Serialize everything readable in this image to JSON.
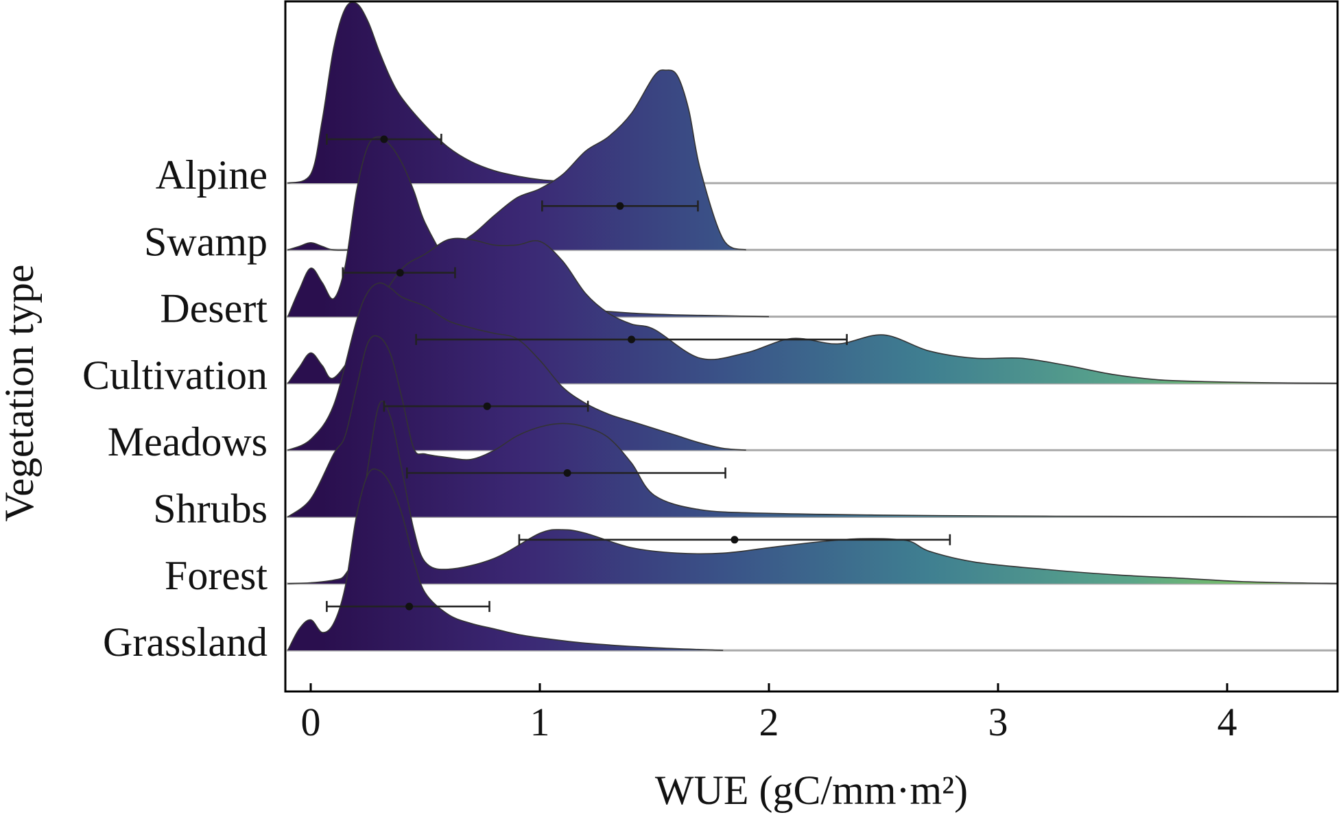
{
  "chart_data": {
    "type": "ridgeline",
    "xlabel": "WUE (gC/mm·m²)",
    "ylabel": "Vegetation type",
    "xlim": [
      -0.1,
      4.5
    ],
    "x_ticks": [
      0,
      1,
      2,
      3,
      4
    ],
    "grid": false,
    "legend": "none",
    "colormap": "viridis gradient along x (dark purple at low WUE to yellow-green at high WUE)",
    "colors": {
      "gradient_stops": [
        "#2a0f4e",
        "#3b2874",
        "#3a5388",
        "#3f7f91",
        "#5aa58a",
        "#8fd44c"
      ],
      "outline": "#333333",
      "baseline": "#a8a8a8",
      "errorbar": "#222222"
    },
    "categories": [
      "Alpine",
      "Swamp",
      "Desert",
      "Cultivation",
      "Meadows",
      "Shrubs",
      "Forest",
      "Grassland"
    ],
    "series": [
      {
        "name": "Alpine",
        "density_x": [
          -0.1,
          0,
          0.05,
          0.1,
          0.15,
          0.2,
          0.25,
          0.3,
          0.35,
          0.4,
          0.5,
          0.6,
          0.7,
          0.8,
          0.9,
          1.0,
          1.1,
          1.2,
          1.3
        ],
        "density_y": [
          0,
          0.05,
          0.35,
          0.75,
          0.97,
          1.0,
          0.9,
          0.73,
          0.58,
          0.47,
          0.32,
          0.2,
          0.12,
          0.07,
          0.04,
          0.02,
          0.01,
          0.005,
          0
        ],
        "mean": 0.32,
        "lower": 0.07,
        "upper": 0.57
      },
      {
        "name": "Swamp",
        "density_x": [
          -0.1,
          -0.05,
          0,
          0.05,
          0.1,
          0.2,
          0.4,
          0.6,
          0.7,
          0.8,
          0.9,
          1.0,
          1.1,
          1.2,
          1.3,
          1.4,
          1.5,
          1.55,
          1.6,
          1.65,
          1.7,
          1.8,
          1.9
        ],
        "density_y": [
          0,
          0.02,
          0.04,
          0.02,
          0,
          0,
          0,
          0.02,
          0.08,
          0.19,
          0.29,
          0.34,
          0.42,
          0.55,
          0.63,
          0.76,
          0.97,
          1.0,
          0.97,
          0.78,
          0.45,
          0.06,
          0
        ],
        "mean": 1.35,
        "lower": 1.01,
        "upper": 1.69
      },
      {
        "name": "Desert",
        "density_x": [
          -0.1,
          -0.05,
          0,
          0.05,
          0.1,
          0.15,
          0.2,
          0.25,
          0.3,
          0.35,
          0.4,
          0.45,
          0.5,
          0.6,
          0.7,
          0.8,
          0.9,
          1.0,
          1.2,
          1.4,
          1.6,
          1.8,
          2.0
        ],
        "density_y": [
          0,
          0.15,
          0.27,
          0.19,
          0.1,
          0.28,
          0.7,
          0.95,
          1.0,
          0.95,
          0.85,
          0.7,
          0.52,
          0.3,
          0.2,
          0.14,
          0.1,
          0.07,
          0.04,
          0.02,
          0.01,
          0.005,
          0
        ],
        "mean": 0.39,
        "lower": 0.14,
        "upper": 0.63
      },
      {
        "name": "Cultivation",
        "density_x": [
          -0.1,
          -0.05,
          0,
          0.05,
          0.1,
          0.2,
          0.3,
          0.4,
          0.5,
          0.6,
          0.7,
          0.8,
          0.9,
          1.0,
          1.1,
          1.2,
          1.3,
          1.4,
          1.5,
          1.7,
          1.9,
          2.1,
          2.3,
          2.5,
          2.7,
          2.9,
          3.1,
          3.3,
          3.5,
          3.7,
          3.9,
          4.1,
          4.3,
          4.5
        ],
        "density_y": [
          0,
          0.09,
          0.17,
          0.1,
          0.03,
          0.2,
          0.45,
          0.64,
          0.72,
          0.8,
          0.8,
          0.77,
          0.77,
          0.79,
          0.68,
          0.5,
          0.39,
          0.33,
          0.3,
          0.14,
          0.17,
          0.25,
          0.22,
          0.27,
          0.18,
          0.14,
          0.14,
          0.1,
          0.05,
          0.02,
          0.01,
          0.005,
          0.002,
          0
        ],
        "mean": 1.4,
        "lower": 0.46,
        "upper": 2.34
      },
      {
        "name": "Meadows",
        "density_x": [
          -0.1,
          0,
          0.1,
          0.2,
          0.25,
          0.3,
          0.35,
          0.4,
          0.5,
          0.6,
          0.7,
          0.8,
          0.9,
          1.0,
          1.1,
          1.2,
          1.3,
          1.4,
          1.5,
          1.6,
          1.7,
          1.8,
          1.9
        ],
        "density_y": [
          0,
          0.06,
          0.25,
          0.72,
          0.88,
          0.93,
          0.9,
          0.85,
          0.8,
          0.72,
          0.68,
          0.65,
          0.62,
          0.5,
          0.35,
          0.26,
          0.2,
          0.16,
          0.12,
          0.08,
          0.04,
          0.01,
          0
        ],
        "mean": 0.77,
        "lower": 0.32,
        "upper": 1.21
      },
      {
        "name": "Shrubs",
        "density_x": [
          -0.1,
          0,
          0.1,
          0.15,
          0.2,
          0.25,
          0.3,
          0.35,
          0.4,
          0.45,
          0.5,
          0.6,
          0.7,
          0.8,
          0.9,
          1.0,
          1.1,
          1.2,
          1.3,
          1.4,
          1.5,
          1.7,
          2.0,
          2.5,
          3.0,
          3.5,
          4.0,
          4.5
        ],
        "density_y": [
          0,
          0.1,
          0.35,
          0.45,
          0.72,
          0.97,
          1.0,
          0.9,
          0.65,
          0.38,
          0.35,
          0.33,
          0.32,
          0.37,
          0.45,
          0.5,
          0.52,
          0.5,
          0.44,
          0.3,
          0.12,
          0.04,
          0.02,
          0.01,
          0.005,
          0.003,
          0.001,
          0
        ],
        "mean": 1.12,
        "lower": 0.42,
        "upper": 1.81
      },
      {
        "name": "Forest",
        "density_x": [
          -0.1,
          0,
          0.1,
          0.15,
          0.2,
          0.25,
          0.3,
          0.35,
          0.4,
          0.45,
          0.5,
          0.6,
          0.8,
          1.0,
          1.1,
          1.2,
          1.4,
          1.6,
          1.8,
          2.0,
          2.2,
          2.4,
          2.6,
          2.7,
          2.9,
          3.2,
          3.5,
          3.8,
          4.1,
          4.5
        ],
        "density_y": [
          0,
          0.005,
          0.02,
          0.05,
          0.2,
          0.65,
          1.0,
          0.92,
          0.62,
          0.3,
          0.12,
          0.08,
          0.14,
          0.28,
          0.3,
          0.28,
          0.2,
          0.17,
          0.17,
          0.2,
          0.23,
          0.25,
          0.24,
          0.18,
          0.12,
          0.08,
          0.05,
          0.03,
          0.01,
          0
        ],
        "mean": 1.85,
        "lower": 0.91,
        "upper": 2.79
      },
      {
        "name": "Grassland",
        "density_x": [
          -0.1,
          -0.05,
          0,
          0.05,
          0.1,
          0.15,
          0.2,
          0.25,
          0.3,
          0.35,
          0.4,
          0.45,
          0.5,
          0.6,
          0.7,
          0.8,
          0.9,
          1.0,
          1.2,
          1.5,
          1.8
        ],
        "density_y": [
          0,
          0.12,
          0.17,
          0.1,
          0.15,
          0.35,
          0.75,
          0.98,
          1.0,
          0.92,
          0.75,
          0.5,
          0.32,
          0.2,
          0.15,
          0.12,
          0.09,
          0.07,
          0.04,
          0.015,
          0
        ],
        "mean": 0.43,
        "lower": 0.07,
        "upper": 0.78
      }
    ]
  }
}
